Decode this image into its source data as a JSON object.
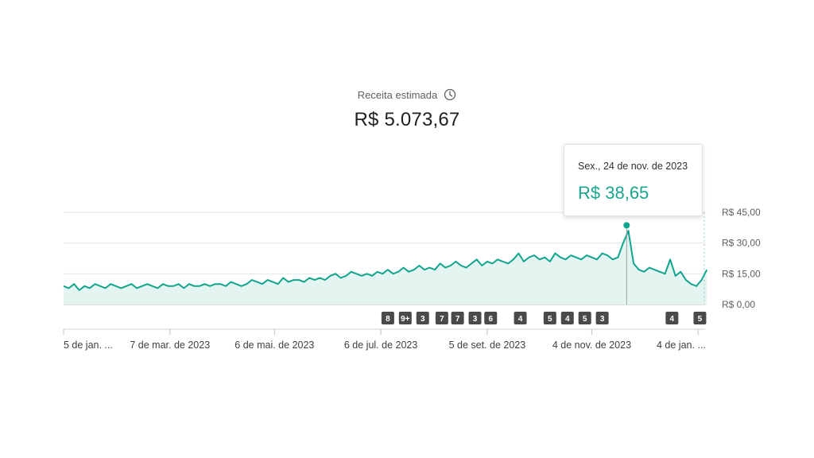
{
  "header": {
    "metric_label": "Receita estimada",
    "metric_info_icon": "clock-icon",
    "metric_total": "R$ 5.073,67"
  },
  "tooltip": {
    "date": "Sex., 24 de nov. de 2023",
    "value": "R$ 38,65"
  },
  "colors": {
    "line": "#12a58e",
    "area": "#e3f4f1",
    "grid": "#e5e5e5",
    "badge": "#4a4a4a",
    "tooltip_value": "#1aa58e"
  },
  "chart_data": {
    "type": "area",
    "title": "",
    "xlabel": "",
    "ylabel": "",
    "ylim": [
      0,
      45
    ],
    "yticks": [
      "R$ 0,00",
      "R$ 15,00",
      "R$ 30,00",
      "R$ 45,00"
    ],
    "yticks_values": [
      0,
      15,
      30,
      45
    ],
    "x_range": [
      "2023-01-05",
      "2024-01-08"
    ],
    "xticks": [
      "5 de jan. ...",
      "7 de mar. de 2023",
      "6 de mai. de 2023",
      "6 de jul. de 2023",
      "5 de set. de 2023",
      "4 de nov. de 2023",
      "4 de jan. ..."
    ],
    "xticks_dates": [
      "2023-01-05",
      "2023-03-07",
      "2023-05-06",
      "2023-07-06",
      "2023-09-05",
      "2023-11-04",
      "2024-01-04"
    ],
    "grid": true,
    "highlight": {
      "date": "2023-11-24",
      "value": 38.65
    },
    "series": [
      {
        "x_start": "2023-01-05",
        "x_step_days": 3,
        "values": [
          9,
          8,
          10,
          7,
          9,
          8,
          10,
          9,
          8,
          10,
          9,
          8,
          9,
          10,
          8,
          9,
          10,
          9,
          8,
          10,
          9,
          9,
          10,
          8,
          10,
          9,
          9,
          10,
          9,
          10,
          10,
          9,
          11,
          10,
          9,
          10,
          12,
          11,
          10,
          12,
          11,
          10,
          13,
          11,
          12,
          12,
          11,
          13,
          12,
          13,
          12,
          14,
          15,
          13,
          14,
          16,
          15,
          14,
          15,
          14,
          16,
          15,
          17,
          15,
          16,
          18,
          16,
          17,
          19,
          17,
          18,
          17,
          20,
          18,
          19,
          21,
          19,
          18,
          20,
          22,
          19,
          21,
          20,
          22,
          21,
          20,
          22,
          25,
          21,
          23,
          24,
          22,
          23,
          21,
          25,
          23,
          22,
          24,
          23,
          22,
          24,
          23,
          22,
          25,
          24,
          22,
          23,
          30,
          36,
          20,
          17,
          16,
          18,
          17,
          16,
          15,
          22,
          14,
          16,
          12,
          10,
          9,
          12,
          17
        ]
      }
    ],
    "annotations": [
      {
        "label": "8",
        "date": "2023-07-10"
      },
      {
        "label": "9+",
        "date": "2023-07-20"
      },
      {
        "label": "3",
        "date": "2023-07-30"
      },
      {
        "label": "7",
        "date": "2023-08-10"
      },
      {
        "label": "7",
        "date": "2023-08-19"
      },
      {
        "label": "3",
        "date": "2023-08-29"
      },
      {
        "label": "6",
        "date": "2023-09-07"
      },
      {
        "label": "4",
        "date": "2023-09-24"
      },
      {
        "label": "5",
        "date": "2023-10-11"
      },
      {
        "label": "4",
        "date": "2023-10-21"
      },
      {
        "label": "5",
        "date": "2023-10-31"
      },
      {
        "label": "3",
        "date": "2023-11-10"
      },
      {
        "label": "4",
        "date": "2023-12-20"
      },
      {
        "label": "5",
        "date": "2024-01-05"
      }
    ]
  }
}
